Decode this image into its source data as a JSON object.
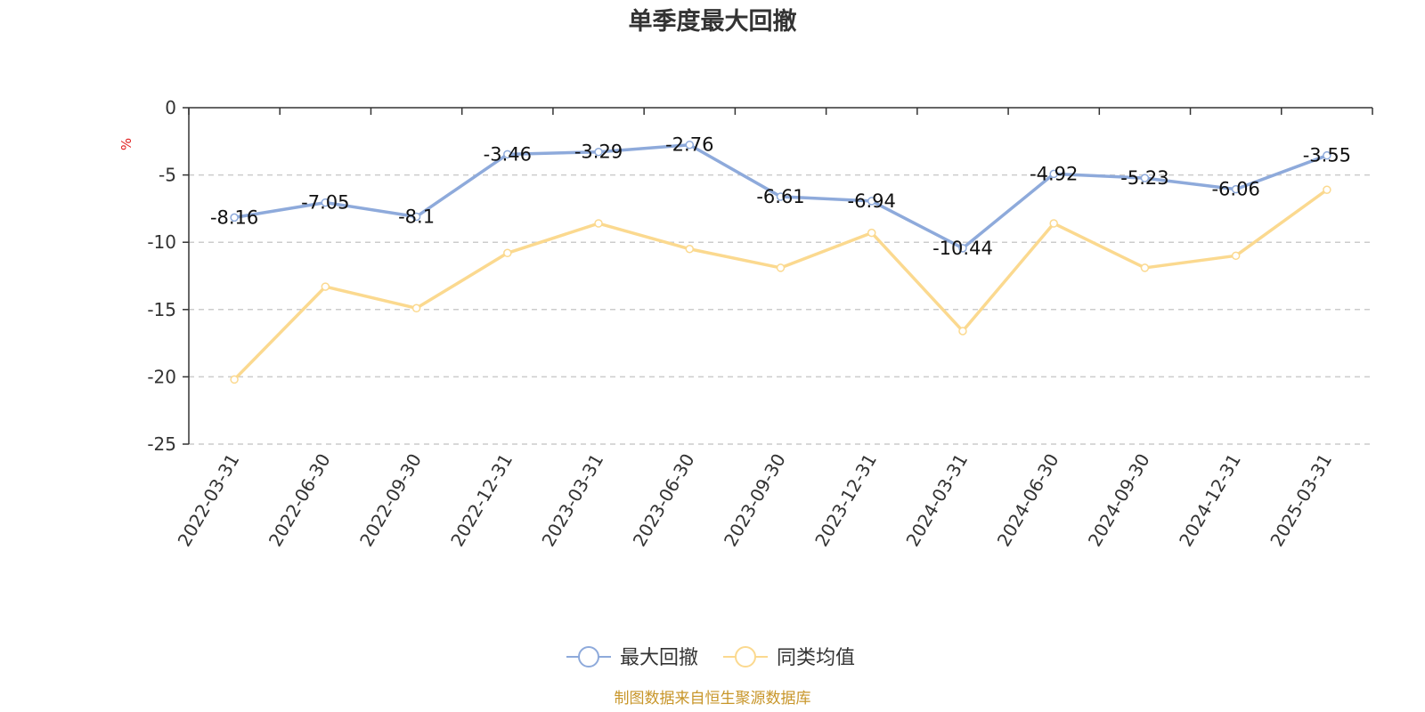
{
  "chart_data": {
    "type": "line",
    "title": "单季度最大回撤",
    "ylabel": "%",
    "ylim": [
      -25,
      0
    ],
    "yticks": [
      0,
      -5,
      -10,
      -15,
      -20,
      -25
    ],
    "grid": true,
    "categories": [
      "2022-03-31",
      "2022-06-30",
      "2022-09-30",
      "2022-12-31",
      "2023-03-31",
      "2023-06-30",
      "2023-09-30",
      "2023-12-31",
      "2024-03-31",
      "2024-06-30",
      "2024-09-30",
      "2024-12-31",
      "2025-03-31"
    ],
    "series": [
      {
        "name": "最大回撤",
        "color": "#8eaadb",
        "values": [
          -8.16,
          -7.05,
          -8.1,
          -3.46,
          -3.29,
          -2.76,
          -6.61,
          -6.94,
          -10.44,
          -4.92,
          -5.23,
          -6.06,
          -3.55
        ],
        "labels": [
          "-8.16",
          "-7.05",
          "-8.1",
          "-3.46",
          "-3.29",
          "-2.76",
          "-6.61",
          "-6.94",
          "-10.44",
          "-4.92",
          "-5.23",
          "-6.06",
          "-3.55"
        ]
      },
      {
        "name": "同类均值",
        "color": "#fbd98f",
        "values": [
          -20.2,
          -13.3,
          -14.9,
          -10.8,
          -8.6,
          -10.5,
          -11.9,
          -9.3,
          -16.6,
          -8.6,
          -11.9,
          -11.0,
          -6.1
        ]
      }
    ],
    "legend_position": "bottom"
  },
  "source_note": "制图数据来自恒生聚源数据库"
}
